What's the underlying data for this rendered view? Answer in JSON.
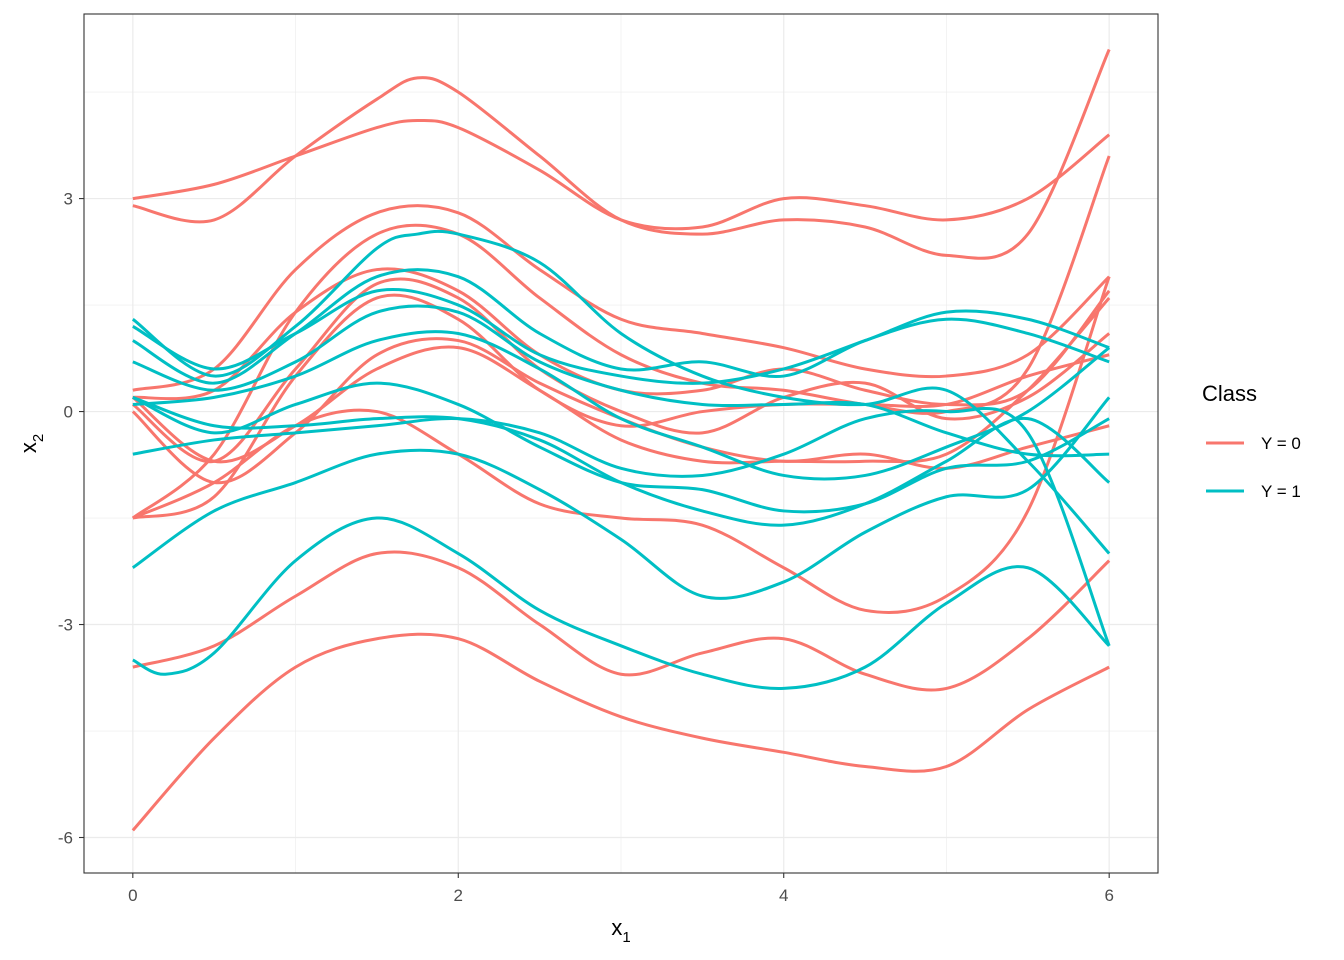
{
  "chart_data": {
    "type": "line",
    "title": "",
    "xlabel": {
      "main": "x",
      "sub": "1"
    },
    "ylabel": {
      "main": "x",
      "sub": "2"
    },
    "xlim": [
      -0.3,
      6.3
    ],
    "ylim": [
      -6.5,
      5.6
    ],
    "x_ticks": [
      0,
      2,
      4,
      6
    ],
    "x_tick_labels": [
      "0",
      "2",
      "4",
      "6"
    ],
    "x_minor_ticks": [
      1,
      3,
      5
    ],
    "y_ticks": [
      -6,
      -3,
      0,
      3
    ],
    "y_tick_labels": [
      "-6",
      "-3",
      "0",
      "3"
    ],
    "y_minor_ticks": [
      -4.5,
      -1.5,
      1.5,
      4.5
    ],
    "grid": true,
    "colors": {
      "Y = 0": "#F8766D",
      "Y = 1": "#00BFC4",
      "grid": "#ebebeb",
      "frame": "#333333"
    },
    "legend": {
      "title": "Class",
      "position": "right",
      "entries": [
        {
          "label": "Y = 0",
          "color": "#F8766D"
        },
        {
          "label": "Y = 1",
          "color": "#00BFC4"
        }
      ]
    },
    "series": [
      {
        "class": "Y = 0",
        "x": [
          0,
          0.5,
          1,
          1.5,
          1.75,
          2,
          2.5,
          3,
          3.5,
          4,
          4.5,
          5,
          5.5,
          6
        ],
        "y": [
          2.9,
          2.7,
          3.6,
          4.4,
          4.7,
          4.5,
          3.6,
          2.7,
          2.5,
          2.7,
          2.6,
          2.2,
          2.5,
          5.1
        ]
      },
      {
        "class": "Y = 0",
        "x": [
          0,
          0.5,
          1,
          1.5,
          1.75,
          2,
          2.5,
          3,
          3.5,
          4,
          4.5,
          5,
          5.5,
          6
        ],
        "y": [
          3.0,
          3.2,
          3.6,
          4.0,
          4.1,
          4.0,
          3.4,
          2.7,
          2.6,
          3.0,
          2.9,
          2.7,
          3.0,
          3.9
        ]
      },
      {
        "class": "Y = 0",
        "x": [
          0,
          0.5,
          1,
          1.5,
          2,
          2.5,
          3,
          3.5,
          4,
          4.5,
          5,
          5.5,
          6
        ],
        "y": [
          0.3,
          0.6,
          2.0,
          2.8,
          2.8,
          2.0,
          1.3,
          1.1,
          0.9,
          0.6,
          0.5,
          0.8,
          1.9
        ]
      },
      {
        "class": "Y = 0",
        "x": [
          0,
          0.5,
          1,
          1.5,
          2,
          2.5,
          3,
          3.5,
          4,
          4.5,
          5,
          5.5,
          6
        ],
        "y": [
          -1.5,
          -0.6,
          1.4,
          2.5,
          2.5,
          1.6,
          0.8,
          0.4,
          0.3,
          0.1,
          0.0,
          0.6,
          3.6
        ]
      },
      {
        "class": "Y = 0",
        "x": [
          0,
          0.5,
          1,
          1.5,
          2,
          2.5,
          3,
          3.5,
          4,
          4.5,
          5,
          5.5,
          6
        ],
        "y": [
          0.2,
          0.3,
          1.4,
          2.0,
          1.7,
          0.8,
          0.3,
          0.3,
          0.6,
          0.3,
          0.1,
          0.3,
          1.7
        ]
      },
      {
        "class": "Y = 0",
        "x": [
          0,
          0.5,
          1,
          1.5,
          2,
          2.5,
          3,
          3.5,
          4,
          4.5,
          5,
          5.5,
          6
        ],
        "y": [
          0.1,
          -0.7,
          0.6,
          1.8,
          1.6,
          0.6,
          0.0,
          -0.3,
          0.2,
          0.4,
          -0.1,
          0.2,
          1.1
        ]
      },
      {
        "class": "Y = 0",
        "x": [
          0,
          0.5,
          1,
          1.5,
          2,
          2.5,
          3,
          3.5,
          4,
          4.5,
          5,
          5.5,
          6
        ],
        "y": [
          -1.5,
          -1.2,
          0.5,
          1.6,
          1.3,
          0.3,
          -0.2,
          0.0,
          0.1,
          0.1,
          0.1,
          0.5,
          0.8
        ]
      },
      {
        "class": "Y = 0",
        "x": [
          0,
          0.5,
          1,
          1.5,
          2,
          2.5,
          3,
          3.5,
          4,
          4.5,
          5,
          5.5,
          6
        ],
        "y": [
          0.2,
          -0.7,
          -0.2,
          0.6,
          0.9,
          0.3,
          -0.4,
          -0.7,
          -0.7,
          -0.7,
          -0.6,
          0.3,
          1.6
        ]
      },
      {
        "class": "Y = 0",
        "x": [
          0,
          0.5,
          1,
          1.5,
          2,
          2.5,
          3,
          3.5,
          4,
          4.5,
          5,
          5.5,
          6
        ],
        "y": [
          0.0,
          -1.0,
          -0.3,
          0.8,
          1.0,
          0.4,
          -0.1,
          -0.5,
          -0.7,
          -0.6,
          -0.8,
          -0.5,
          -0.2
        ]
      },
      {
        "class": "Y = 0",
        "x": [
          0,
          0.5,
          1,
          1.5,
          2,
          2.5,
          3,
          3.5,
          4,
          4.5,
          5,
          5.5,
          6
        ],
        "y": [
          -1.5,
          -1.0,
          -0.2,
          0.0,
          -0.6,
          -1.3,
          -1.5,
          -1.6,
          -2.2,
          -2.8,
          -2.6,
          -1.4,
          1.9
        ]
      },
      {
        "class": "Y = 0",
        "x": [
          0,
          0.5,
          1,
          1.5,
          2,
          2.5,
          3,
          3.5,
          4,
          4.5,
          5,
          5.5,
          6
        ],
        "y": [
          -3.6,
          -3.3,
          -2.6,
          -2.0,
          -2.2,
          -3.0,
          -3.7,
          -3.4,
          -3.2,
          -3.7,
          -3.9,
          -3.2,
          -2.1
        ]
      },
      {
        "class": "Y = 0",
        "x": [
          0,
          0.5,
          1,
          1.5,
          2,
          2.5,
          3,
          3.5,
          4,
          4.5,
          5,
          5.5,
          6
        ],
        "y": [
          -5.9,
          -4.6,
          -3.6,
          -3.2,
          -3.2,
          -3.8,
          -4.3,
          -4.6,
          -4.8,
          -5.0,
          -5.0,
          -4.2,
          -3.6
        ]
      },
      {
        "class": "Y = 1",
        "x": [
          0,
          0.5,
          1,
          1.5,
          1.75,
          2,
          2.5,
          3,
          3.5,
          4,
          4.5,
          5,
          5.5,
          6
        ],
        "y": [
          1.3,
          0.5,
          1.2,
          2.3,
          2.5,
          2.5,
          2.1,
          1.1,
          0.5,
          0.2,
          0.1,
          0.3,
          -0.7,
          -2.0
        ]
      },
      {
        "class": "Y = 1",
        "x": [
          0,
          0.5,
          1,
          1.5,
          2,
          2.5,
          3,
          3.5,
          4,
          4.5,
          5,
          5.5,
          6
        ],
        "y": [
          1.0,
          0.4,
          1.1,
          1.9,
          1.9,
          1.1,
          0.6,
          0.7,
          0.5,
          1.0,
          1.3,
          1.1,
          0.7
        ]
      },
      {
        "class": "Y = 1",
        "x": [
          0,
          0.5,
          1,
          1.5,
          2,
          2.5,
          3,
          3.5,
          4,
          4.5,
          5,
          5.5,
          6
        ],
        "y": [
          1.2,
          0.6,
          1.1,
          1.7,
          1.5,
          0.8,
          0.5,
          0.4,
          0.6,
          1.0,
          1.4,
          1.3,
          0.9
        ]
      },
      {
        "class": "Y = 1",
        "x": [
          0,
          0.5,
          1,
          1.5,
          2,
          2.5,
          3,
          3.5,
          4,
          4.5,
          5,
          5.5,
          6
        ],
        "y": [
          0.7,
          0.3,
          0.7,
          1.4,
          1.4,
          0.7,
          0.3,
          0.1,
          0.1,
          0.1,
          -0.3,
          -0.6,
          -0.6
        ]
      },
      {
        "class": "Y = 1",
        "x": [
          0,
          0.5,
          1,
          1.5,
          2,
          2.5,
          3,
          3.5,
          4,
          4.5,
          5,
          5.5,
          6
        ],
        "y": [
          0.1,
          0.2,
          0.5,
          1.0,
          1.1,
          0.6,
          -0.1,
          -0.5,
          -0.9,
          -0.9,
          -0.5,
          0.0,
          0.9
        ]
      },
      {
        "class": "Y = 1",
        "x": [
          0,
          0.5,
          1,
          1.5,
          2,
          2.5,
          3,
          3.5,
          4,
          4.5,
          5,
          5.5,
          6
        ],
        "y": [
          0.2,
          -0.3,
          0.1,
          0.4,
          0.1,
          -0.5,
          -1.0,
          -1.1,
          -1.4,
          -1.3,
          -0.8,
          -0.7,
          -0.1
        ]
      },
      {
        "class": "Y = 1",
        "x": [
          0,
          0.5,
          1,
          1.5,
          2,
          2.5,
          3,
          3.5,
          4,
          4.5,
          5,
          5.5,
          6
        ],
        "y": [
          0.2,
          -0.2,
          -0.2,
          -0.1,
          -0.1,
          -0.4,
          -1.0,
          -1.4,
          -1.6,
          -1.3,
          -0.7,
          -0.1,
          -1.0
        ]
      },
      {
        "class": "Y = 1",
        "x": [
          0,
          0.5,
          1,
          1.5,
          2,
          2.5,
          3,
          3.5,
          4,
          4.5,
          5,
          5.5,
          6
        ],
        "y": [
          -0.6,
          -0.4,
          -0.3,
          -0.2,
          -0.1,
          -0.3,
          -0.8,
          -0.9,
          -0.6,
          -0.1,
          0.0,
          -0.3,
          -3.3
        ]
      },
      {
        "class": "Y = 1",
        "x": [
          0,
          0.5,
          1,
          1.5,
          2,
          2.5,
          3,
          3.5,
          4,
          4.5,
          5,
          5.5,
          6
        ],
        "y": [
          -2.2,
          -1.4,
          -1.0,
          -0.6,
          -0.6,
          -1.1,
          -1.8,
          -2.6,
          -2.4,
          -1.7,
          -1.2,
          -1.1,
          0.2
        ]
      },
      {
        "class": "Y = 1",
        "x": [
          0,
          0.2,
          0.5,
          1,
          1.5,
          2,
          2.5,
          3,
          3.5,
          4,
          4.5,
          5,
          5.5,
          6
        ],
        "y": [
          -3.5,
          -3.7,
          -3.4,
          -2.1,
          -1.5,
          -2.0,
          -2.8,
          -3.3,
          -3.7,
          -3.9,
          -3.6,
          -2.7,
          -2.2,
          -3.3
        ]
      }
    ]
  }
}
